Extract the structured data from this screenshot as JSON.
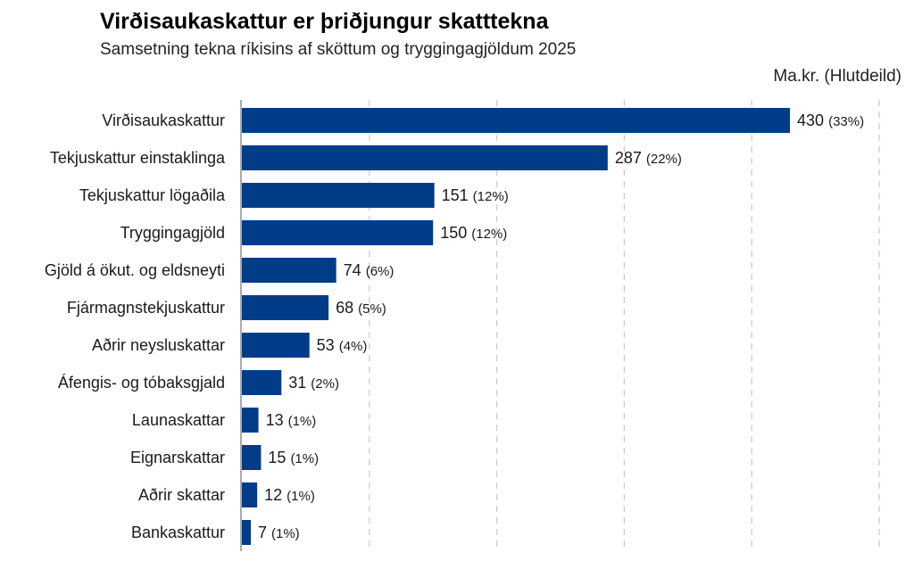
{
  "chart_data": {
    "type": "bar",
    "orientation": "horizontal",
    "title": "Virðisaukaskattur er þriðjungur skatttekna",
    "subtitle": "Samsetning tekna ríkisins af sköttum og tryggingagjöldum 2025",
    "unit_label": "Ma.kr. (Hlutdeild)",
    "categories": [
      "Virðisaukaskattur",
      "Tekjuskattur einstaklinga",
      "Tekjuskattur lögaðila",
      "Tryggingagjöld",
      "Gjöld á ökut. og eldsneyti",
      "Fjármagnstekjuskattur",
      "Aðrir neysluskattar",
      "Áfengis- og tóbaksgjald",
      "Launaskattar",
      "Eignarskattar",
      "Aðrir skattar",
      "Bankaskattur"
    ],
    "values": [
      430,
      287,
      151,
      150,
      74,
      68,
      53,
      31,
      13,
      15,
      12,
      7
    ],
    "shares": [
      "(33%)",
      "(22%)",
      "(12%)",
      "(12%)",
      "(6%)",
      "(5%)",
      "(4%)",
      "(2%)",
      "(1%)",
      "(1%)",
      "(1%)",
      "(1%)"
    ],
    "xlim": [
      0,
      500
    ],
    "gridlines": [
      100,
      200,
      300,
      400,
      500
    ],
    "grid": "vertical dashed",
    "bar_color": "#003c88",
    "grid_color": "#cccccc"
  }
}
